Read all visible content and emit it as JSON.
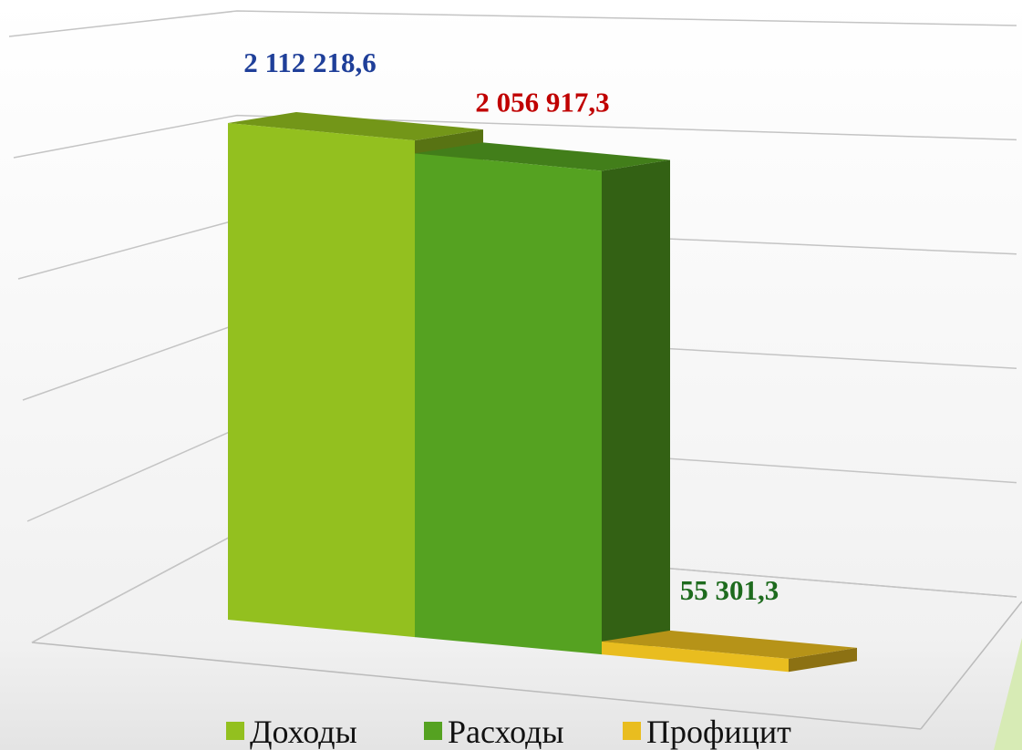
{
  "chart_data": {
    "type": "bar3d",
    "series": [
      {
        "name": "Доходы",
        "color": "#93c01f",
        "label_color": "#1f3f99",
        "values": [
          2112218.6
        ],
        "value_labels": [
          "2 112 218,6"
        ]
      },
      {
        "name": "Расходы",
        "color": "#55a221",
        "label_color": "#c00000",
        "values": [
          2056917.3
        ],
        "value_labels": [
          "2 056 917,3"
        ]
      },
      {
        "name": "Профицит",
        "color": "#e9bd1f",
        "label_color": "#1e6b1e",
        "values": [
          55301.3
        ],
        "value_labels": [
          "55 301,3"
        ]
      }
    ],
    "ylim": [
      0,
      2500000
    ],
    "yticks": [
      0,
      500000,
      1000000,
      1500000,
      2000000,
      2500000
    ],
    "grid": true
  }
}
